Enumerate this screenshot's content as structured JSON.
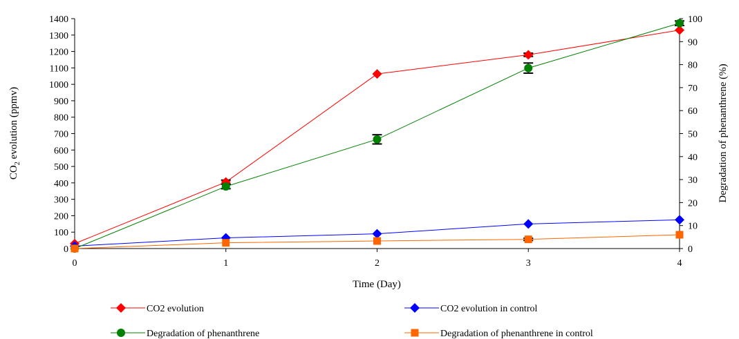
{
  "chart_data": {
    "type": "line",
    "title": "",
    "x_axis": {
      "label": "Time (Day)",
      "ticks": [
        "0",
        "1",
        "2",
        "3",
        "4"
      ],
      "range": [
        0,
        4
      ]
    },
    "y_axis_left": {
      "label_main": "CO",
      "label_sub": "2",
      "label_rest": " evolution (ppmv)",
      "range": [
        0,
        1400
      ],
      "ticks": [
        "0",
        "100",
        "200",
        "300",
        "400",
        "500",
        "600",
        "700",
        "800",
        "900",
        "1000",
        "1100",
        "1200",
        "1300",
        "1400"
      ]
    },
    "y_axis_right": {
      "label": "Degradation of phenanthrene (%)",
      "range": [
        0,
        100
      ],
      "ticks": [
        "0",
        "10",
        "20",
        "30",
        "40",
        "50",
        "60",
        "70",
        "80",
        "90",
        "100"
      ]
    },
    "grid": false,
    "legend_position": "bottom",
    "series": [
      {
        "name": "CO2 evolution",
        "axis": "left",
        "marker": "diamond",
        "color": "#ff0000",
        "x": [
          0,
          1,
          2,
          3,
          4
        ],
        "values": [
          30,
          405,
          1063,
          1180,
          1330
        ],
        "error": [
          0,
          12,
          0,
          10,
          0
        ]
      },
      {
        "name": "CO2 evolution in control",
        "axis": "left",
        "marker": "diamond",
        "color": "#0000ff",
        "x": [
          0,
          1,
          2,
          3,
          4
        ],
        "values": [
          15,
          65,
          90,
          150,
          175
        ],
        "error": [
          0,
          0,
          0,
          0,
          0
        ]
      },
      {
        "name": "Degradation of phenanthrene",
        "axis": "right",
        "marker": "circle",
        "color": "#008000",
        "x": [
          0,
          1,
          2,
          3,
          4
        ],
        "values": [
          0,
          27,
          47.5,
          78.5,
          98
        ],
        "error": [
          0,
          1,
          2,
          2.2,
          1
        ]
      },
      {
        "name": "Degradation of phenanthrene in control",
        "axis": "right",
        "marker": "square",
        "color": "#ff6600",
        "x": [
          0,
          1,
          2,
          3,
          4
        ],
        "values": [
          0,
          2.5,
          3.3,
          4,
          6
        ],
        "error": [
          0,
          0,
          0,
          0.5,
          0
        ]
      }
    ]
  }
}
